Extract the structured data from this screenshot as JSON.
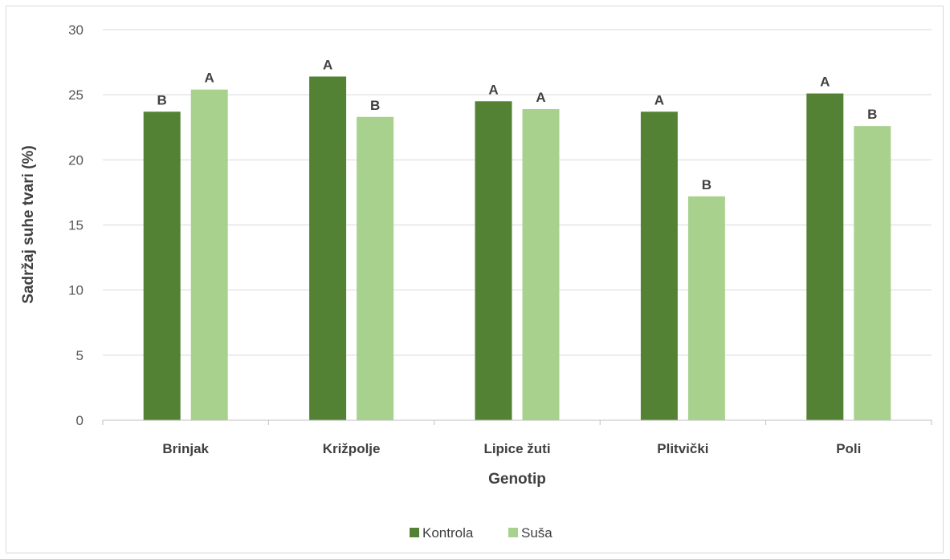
{
  "chart_data": {
    "type": "bar",
    "title": "",
    "xlabel": "Genotip",
    "ylabel": "Sadržaj suhe tvari (%)",
    "ylim": [
      0,
      30
    ],
    "yticks": [
      0,
      5,
      10,
      15,
      20,
      25,
      30
    ],
    "grid": true,
    "legend_position": "bottom",
    "categories": [
      "Brinjak",
      "Križpolje",
      "Lipice žuti",
      "Plitvički",
      "Poli"
    ],
    "series": [
      {
        "name": "Kontrola",
        "color": "#548235",
        "values": [
          23.7,
          26.4,
          24.5,
          23.7,
          25.1
        ],
        "labels": [
          "B",
          "A",
          "A",
          "A",
          "A"
        ]
      },
      {
        "name": "Suša",
        "color": "#a9d18e",
        "values": [
          25.4,
          23.3,
          23.9,
          17.2,
          22.6
        ],
        "labels": [
          "A",
          "B",
          "A",
          "B",
          "B"
        ]
      }
    ]
  }
}
